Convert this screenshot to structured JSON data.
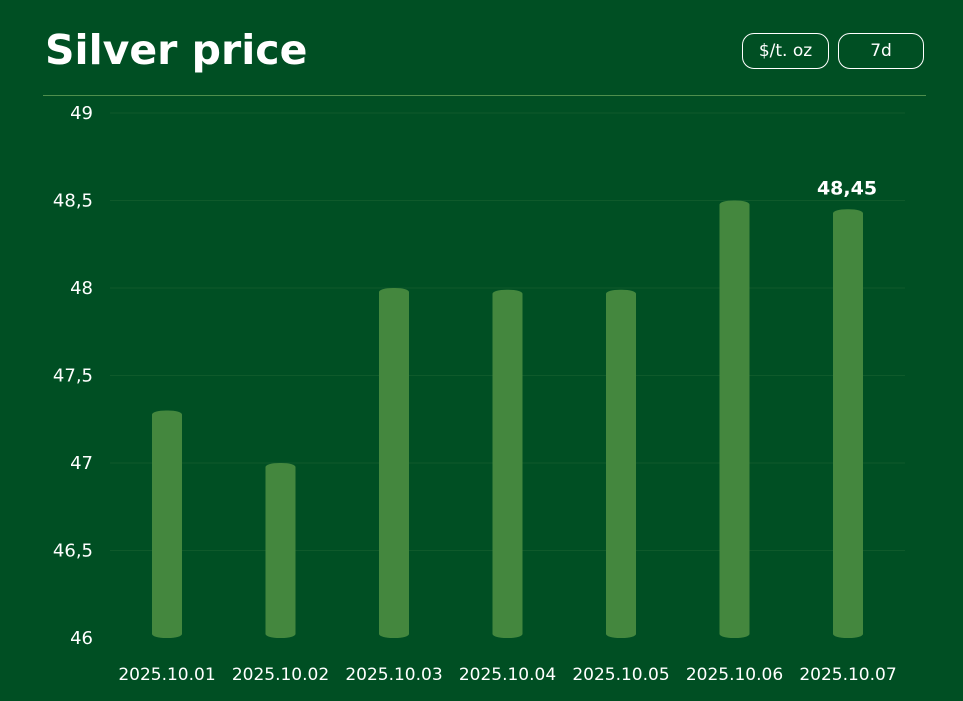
{
  "header": {
    "title": "Silver price",
    "unit_label": "$/t. oz",
    "range_label": "7d"
  },
  "colors": {
    "background": "#004f23",
    "bar": "#44873e",
    "text": "#ffffff"
  },
  "chart_data": {
    "type": "bar",
    "title": "Silver price",
    "xlabel": "",
    "ylabel": "",
    "categories": [
      "2025.10.01",
      "2025.10.02",
      "2025.10.03",
      "2025.10.04",
      "2025.10.05",
      "2025.10.06",
      "2025.10.07"
    ],
    "values": [
      47.3,
      47.0,
      48.0,
      47.99,
      47.99,
      48.5,
      48.45
    ],
    "ylim": [
      46,
      49
    ],
    "yticks": [
      "46",
      "46,5",
      "47",
      "47,5",
      "48",
      "48,5",
      "49"
    ],
    "data_labels": [
      {
        "category": "2025.10.07",
        "text": "48,45"
      }
    ],
    "grid": true,
    "legend": "none"
  }
}
